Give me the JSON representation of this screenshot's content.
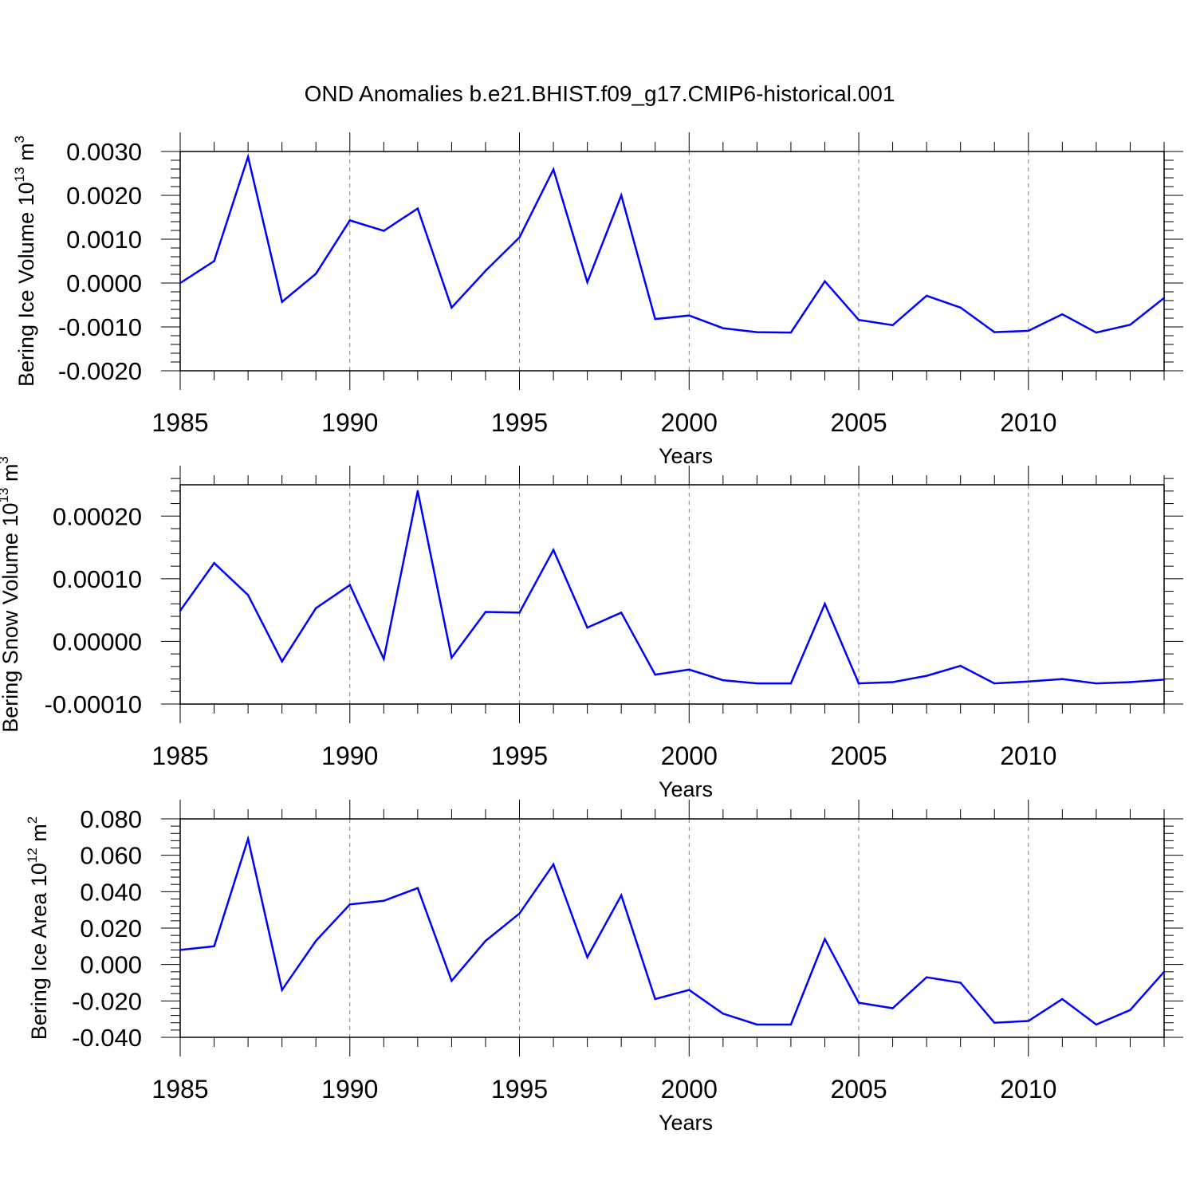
{
  "title": "OND Anomalies b.e21.BHIST.f09_g17.CMIP6-historical.001",
  "colors": {
    "series": "#0000ff",
    "axis": "#000000",
    "grid": "#808080"
  },
  "chart_data": [
    {
      "type": "line",
      "xlabel": "Years",
      "ylabel": {
        "text": "Bering Ice Volume 10",
        "sup": "13",
        "unit": " m",
        "unit_sup": "3"
      },
      "xlim": [
        1985,
        2014
      ],
      "ylim": [
        -0.002,
        0.003
      ],
      "x_ticks": [
        "1985",
        "1990",
        "1995",
        "2000",
        "2005",
        "2010"
      ],
      "y_ticks": [
        "0.0030",
        "0.0020",
        "0.0010",
        "0.0000",
        "-0.0010",
        "-0.0020"
      ],
      "grid": "vertical dashed at major x ticks",
      "x": [
        1985,
        1986,
        1987,
        1988,
        1989,
        1990,
        1991,
        1992,
        1993,
        1994,
        1995,
        1996,
        1997,
        1998,
        1999,
        2000,
        2001,
        2002,
        2003,
        2004,
        2005,
        2006,
        2007,
        2008,
        2009,
        2010,
        2011,
        2012,
        2013,
        2014
      ],
      "values": [
        0.0,
        0.0005,
        0.00288,
        -0.00043,
        0.00021,
        0.00143,
        0.00119,
        0.0017,
        -0.00056,
        0.00028,
        0.00104,
        0.00259,
        2e-05,
        0.002,
        -0.00082,
        -0.00074,
        -0.00103,
        -0.00112,
        -0.00113,
        4e-05,
        -0.00084,
        -0.00096,
        -0.00029,
        -0.00056,
        -0.00112,
        -0.00109,
        -0.00071,
        -0.00113,
        -0.00095,
        -0.00034
      ]
    },
    {
      "type": "line",
      "xlabel": "Years",
      "ylabel": {
        "text": "Bering Snow Volume 10",
        "sup": "13",
        "unit": " m",
        "unit_sup": "3"
      },
      "xlim": [
        1985,
        2014
      ],
      "ylim": [
        -0.0001,
        0.00025
      ],
      "x_ticks": [
        "1985",
        "1990",
        "1995",
        "2000",
        "2005",
        "2010"
      ],
      "y_ticks": [
        "0.00020",
        "0.00010",
        "0.00000",
        "-0.00010"
      ],
      "grid": "vertical dashed at major x ticks",
      "x": [
        1985,
        1986,
        1987,
        1988,
        1989,
        1990,
        1991,
        1992,
        1993,
        1994,
        1995,
        1996,
        1997,
        1998,
        1999,
        2000,
        2001,
        2002,
        2003,
        2004,
        2005,
        2006,
        2007,
        2008,
        2009,
        2010,
        2011,
        2012,
        2013,
        2014
      ],
      "values": [
        4.9e-05,
        0.000125,
        7.4e-05,
        -3.2e-05,
        5.3e-05,
        9e-05,
        -2.8e-05,
        0.00024,
        -2.6e-05,
        4.7e-05,
        4.6e-05,
        0.000146,
        2.2e-05,
        4.6e-05,
        -5.3e-05,
        -4.5e-05,
        -6.2e-05,
        -6.7e-05,
        -6.7e-05,
        6e-05,
        -6.7e-05,
        -6.5e-05,
        -5.5e-05,
        -3.9e-05,
        -6.7e-05,
        -6.4e-05,
        -6e-05,
        -6.7e-05,
        -6.5e-05,
        -6.1e-05
      ]
    },
    {
      "type": "line",
      "xlabel": "Years",
      "ylabel": {
        "text": "Bering Ice Area 10",
        "sup": "12",
        "unit": " m",
        "unit_sup": "2"
      },
      "xlim": [
        1985,
        2014
      ],
      "ylim": [
        -0.04,
        0.08
      ],
      "x_ticks": [
        "1985",
        "1990",
        "1995",
        "2000",
        "2005",
        "2010"
      ],
      "y_ticks": [
        "0.080",
        "0.060",
        "0.040",
        "0.020",
        "0.000",
        "-0.020",
        "-0.040"
      ],
      "grid": "vertical dashed at major x ticks",
      "x": [
        1985,
        1986,
        1987,
        1988,
        1989,
        1990,
        1991,
        1992,
        1993,
        1994,
        1995,
        1996,
        1997,
        1998,
        1999,
        2000,
        2001,
        2002,
        2003,
        2004,
        2005,
        2006,
        2007,
        2008,
        2009,
        2010,
        2011,
        2012,
        2013,
        2014
      ],
      "values": [
        0.008,
        0.01,
        0.069,
        -0.014,
        0.013,
        0.033,
        0.035,
        0.042,
        -0.009,
        0.013,
        0.028,
        0.055,
        0.004,
        0.038,
        -0.019,
        -0.014,
        -0.027,
        -0.033,
        -0.033,
        0.014,
        -0.021,
        -0.024,
        -0.007,
        -0.01,
        -0.032,
        -0.031,
        -0.019,
        -0.033,
        -0.025,
        -0.004
      ]
    }
  ]
}
